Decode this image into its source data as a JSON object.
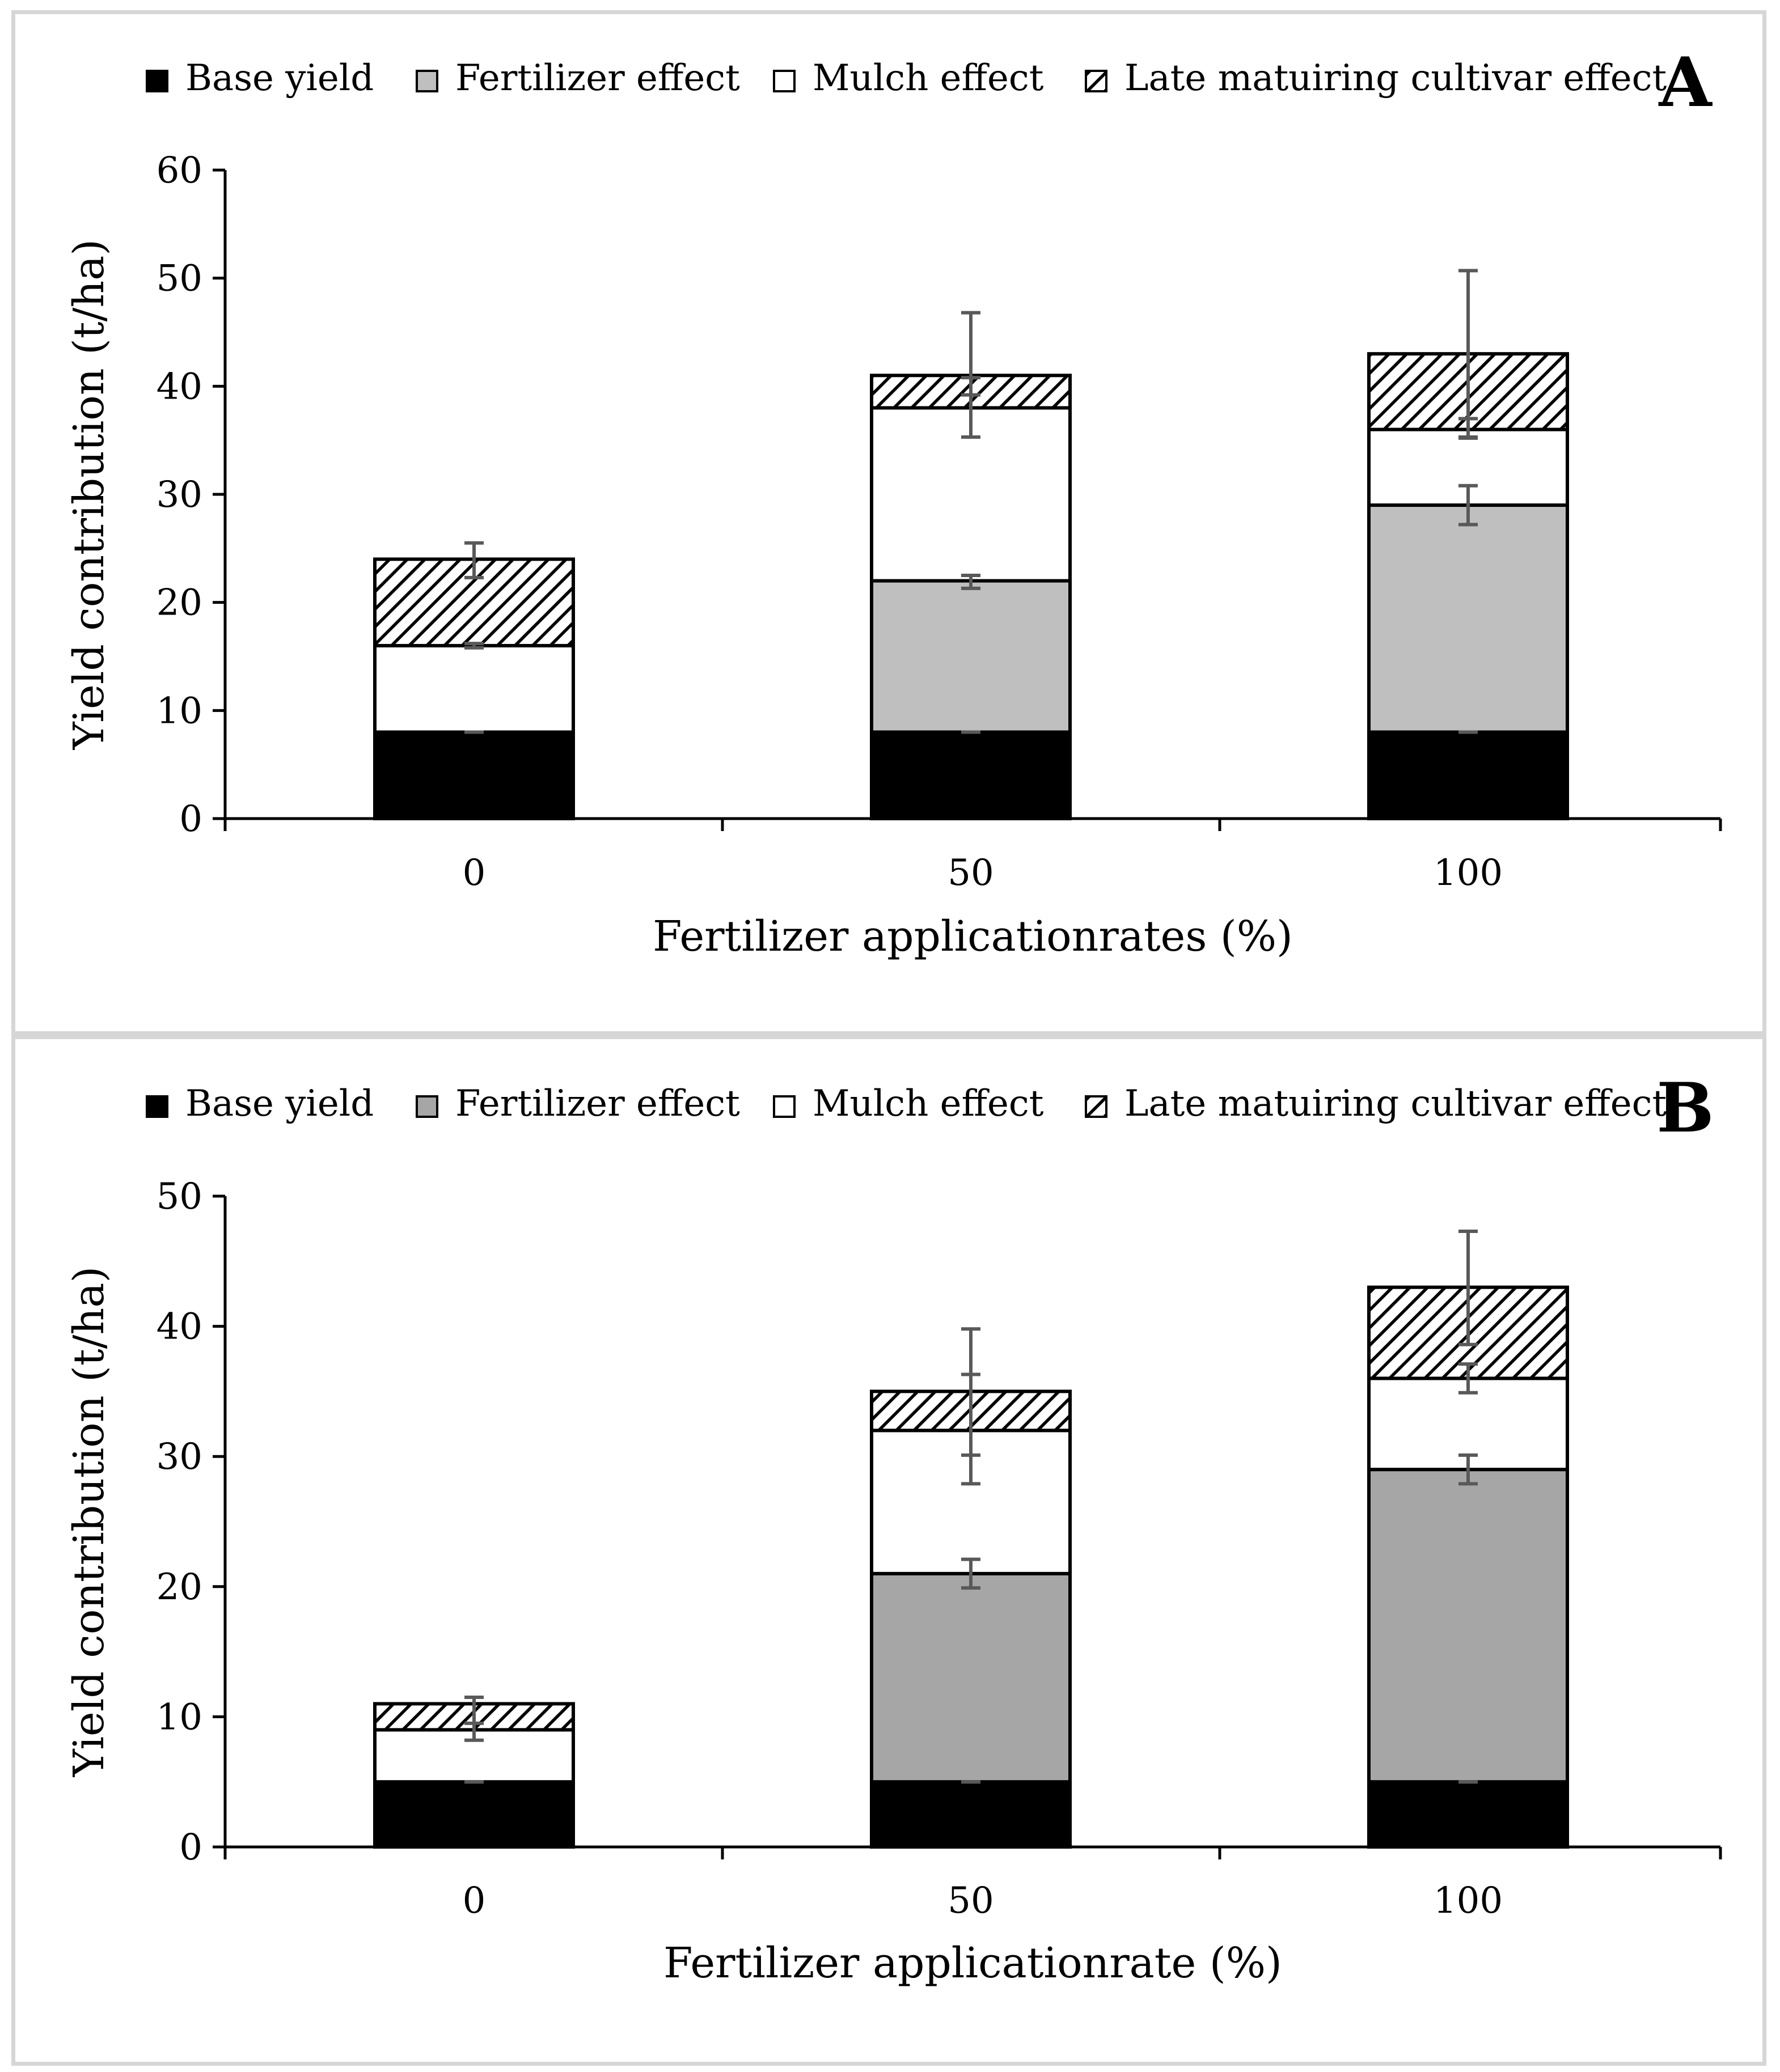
{
  "chart_data": [
    {
      "type": "bar",
      "stacked": true,
      "panel_letter": "A",
      "categories": [
        "0",
        "50",
        "100"
      ],
      "xlabel": "Fertilizer applicationrates (%)",
      "ylabel": "Yield contribution (t/ha)",
      "ylim": [
        0,
        60
      ],
      "yticks": [
        "0",
        "10",
        "20",
        "30",
        "40",
        "50",
        "60"
      ],
      "grid": false,
      "legend_position": "top",
      "series": [
        {
          "name": "Base yield",
          "fill": "#000000",
          "values": [
            8,
            8,
            8
          ],
          "error_top": [
            8,
            8,
            8
          ],
          "error_bottom": [
            8,
            8,
            8
          ]
        },
        {
          "name": "Fertilizer effect",
          "fill": "#bfbfbf",
          "values": [
            0,
            14,
            21
          ],
          "error_top": [
            null,
            22.5,
            30.8
          ],
          "error_bottom": [
            null,
            21.3,
            27.2
          ]
        },
        {
          "name": "Mulch effect",
          "fill": "#ffffff",
          "values": [
            8,
            16,
            7
          ],
          "error_top": [
            16.2,
            40.8,
            37
          ],
          "error_bottom": [
            15.8,
            35.3,
            35.2
          ]
        },
        {
          "name": "Late matuiring cultivar effect",
          "fill": "hatch",
          "values": [
            8,
            3,
            7
          ],
          "error_top": [
            25.5,
            46.8,
            50.7
          ],
          "error_bottom": [
            22.3,
            39.2,
            35.3
          ]
        }
      ]
    },
    {
      "type": "bar",
      "stacked": true,
      "panel_letter": "B",
      "categories": [
        "0",
        "50",
        "100"
      ],
      "xlabel": "Fertilizer applicationrate (%)",
      "ylabel": "Yield contribution (t/ha)",
      "ylim": [
        0,
        50
      ],
      "yticks": [
        "0",
        "10",
        "20",
        "30",
        "40",
        "50"
      ],
      "grid": false,
      "legend_position": "top",
      "series": [
        {
          "name": "Base yield",
          "fill": "#000000",
          "values": [
            5,
            5,
            5
          ],
          "error_top": [
            5,
            5,
            5
          ],
          "error_bottom": [
            5,
            5,
            5
          ]
        },
        {
          "name": "Fertilizer effect",
          "fill": "#a6a6a6",
          "values": [
            0,
            16,
            24
          ],
          "error_top": [
            null,
            22.1,
            30.1
          ],
          "error_bottom": [
            null,
            19.9,
            27.9
          ]
        },
        {
          "name": "Mulch effect",
          "fill": "#ffffff",
          "values": [
            4,
            11,
            7
          ],
          "error_top": [
            11.5,
            36.3,
            37.1
          ],
          "error_bottom": [
            8.2,
            27.9,
            34.9
          ]
        },
        {
          "name": "Late matuiring cultivar effect",
          "fill": "hatch",
          "values": [
            2,
            3,
            7
          ],
          "error_top": [
            11.5,
            39.8,
            47.3
          ],
          "error_bottom": [
            9.5,
            30.1,
            38.6
          ]
        }
      ]
    }
  ]
}
